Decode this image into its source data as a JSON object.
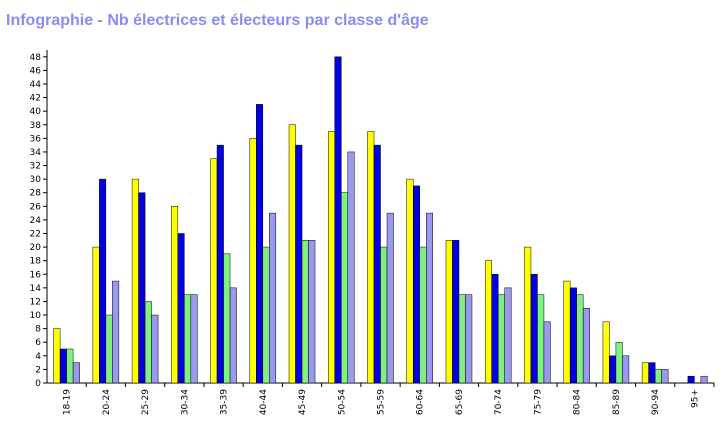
{
  "title": "Infographie - Nb électrices et électeurs par classe d'âge",
  "chart_data": {
    "type": "bar",
    "title": "Infographie - Nb électrices et électeurs par classe d'âge",
    "xlabel": "",
    "ylabel": "",
    "ylim": [
      0,
      49
    ],
    "ytick_step": 2,
    "grid": false,
    "legend": "none",
    "categories": [
      "18-19",
      "20-24",
      "25-29",
      "30-34",
      "35-39",
      "40-44",
      "45-49",
      "50-54",
      "55-59",
      "60-64",
      "65-69",
      "70-74",
      "75-79",
      "80-84",
      "85-89",
      "90-94",
      "95+"
    ],
    "series": [
      {
        "color": "#ffff00",
        "values": [
          8,
          20,
          30,
          26,
          33,
          36,
          38,
          37,
          37,
          30,
          21,
          18,
          20,
          15,
          9,
          3,
          0
        ]
      },
      {
        "color": "#0000e0",
        "values": [
          5,
          30,
          28,
          22,
          35,
          41,
          35,
          48,
          35,
          29,
          21,
          16,
          16,
          14,
          4,
          3,
          1
        ]
      },
      {
        "color": "#80f080",
        "values": [
          5,
          10,
          12,
          13,
          19,
          20,
          21,
          28,
          20,
          20,
          13,
          13,
          13,
          13,
          6,
          2,
          0
        ]
      },
      {
        "color": "#9999f0",
        "values": [
          3,
          15,
          10,
          13,
          14,
          25,
          21,
          34,
          25,
          25,
          13,
          14,
          9,
          11,
          4,
          2,
          1
        ]
      }
    ]
  }
}
